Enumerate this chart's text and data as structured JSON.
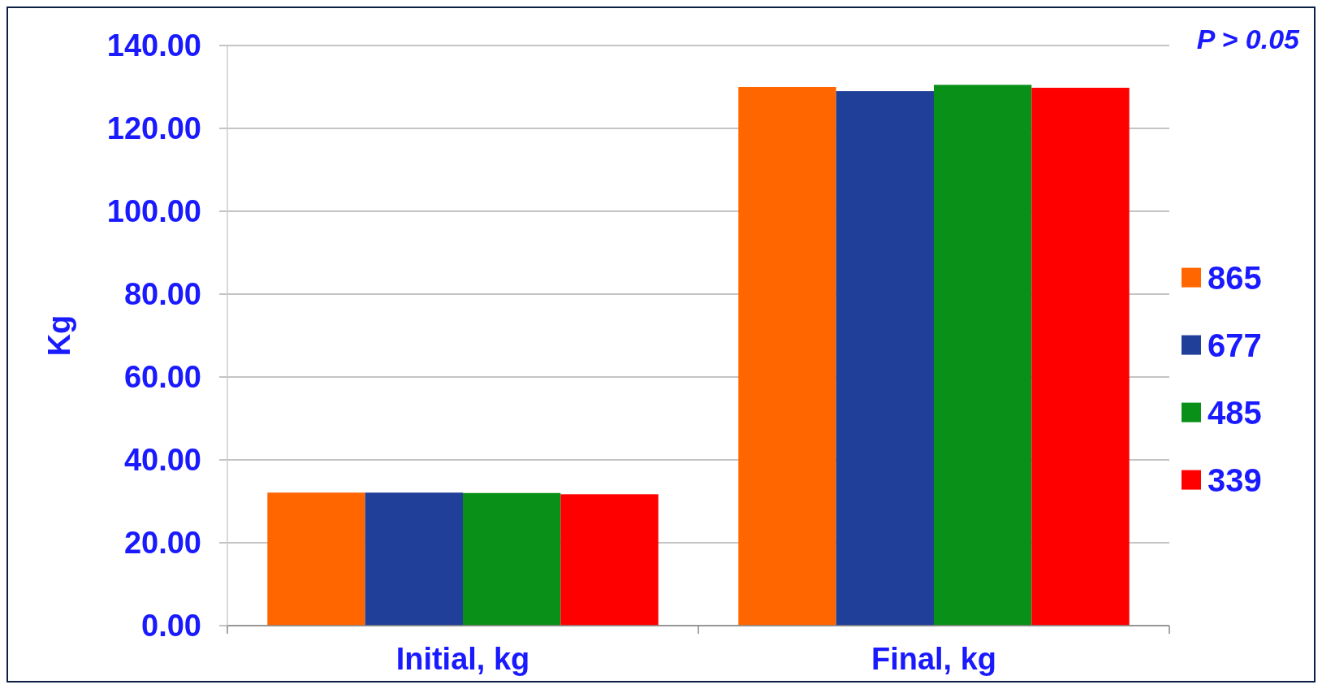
{
  "chart_data": {
    "type": "bar",
    "ylabel": "Kg",
    "categories": [
      "Initial, kg",
      "Final, kg"
    ],
    "series": [
      {
        "name": "865",
        "color": "#ff6600",
        "values": [
          32.1,
          130.0
        ]
      },
      {
        "name": "677",
        "color": "#1f3f99",
        "values": [
          32.1,
          129.0
        ]
      },
      {
        "name": "485",
        "color": "#089018",
        "values": [
          32.0,
          130.5
        ]
      },
      {
        "name": "339",
        "color": "#ff0000",
        "values": [
          31.7,
          129.8
        ]
      }
    ],
    "ylim": [
      0,
      140
    ],
    "yticks": [
      {
        "value": 0,
        "label": "0.00"
      },
      {
        "value": 20,
        "label": "20.00"
      },
      {
        "value": 40,
        "label": "40.00"
      },
      {
        "value": 60,
        "label": "60.00"
      },
      {
        "value": 80,
        "label": "80.00"
      },
      {
        "value": 100,
        "label": "100.00"
      },
      {
        "value": 120,
        "label": "120.00"
      },
      {
        "value": 140,
        "label": "140.00"
      }
    ],
    "grid": "y",
    "legend": "right",
    "annotations": [
      "P > 0.05"
    ]
  }
}
